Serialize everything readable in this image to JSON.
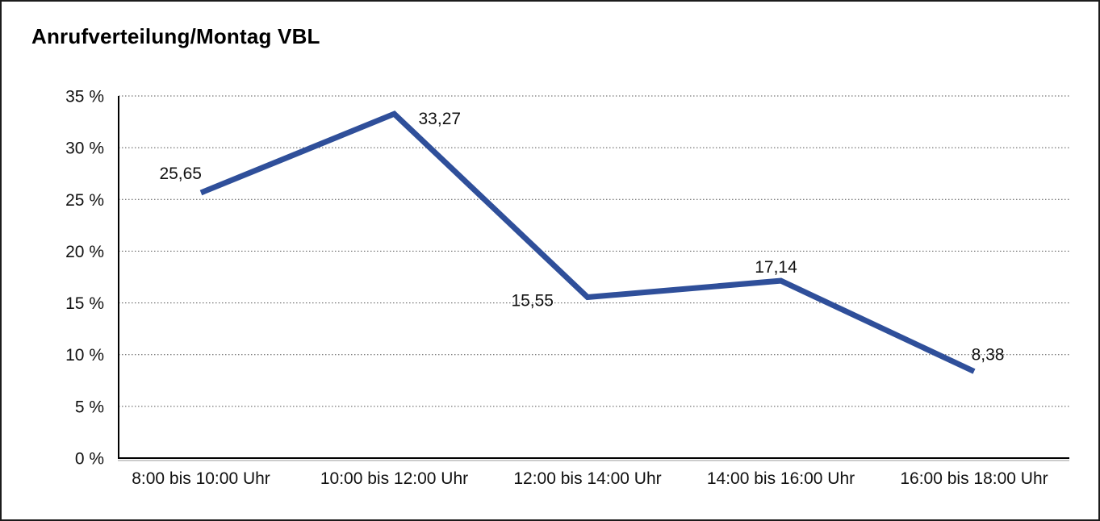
{
  "title": "Anrufverteilung/Montag VBL",
  "chart_data": {
    "type": "line",
    "title": "Anrufverteilung/Montag VBL",
    "categories": [
      "8:00 bis 10:00 Uhr",
      "10:00 bis 12:00 Uhr",
      "12:00 bis 14:00 Uhr",
      "14:00 bis 16:00 Uhr",
      "16:00 bis 18:00 Uhr"
    ],
    "values": [
      25.65,
      33.27,
      15.55,
      17.14,
      8.38
    ],
    "value_labels": [
      "25,65",
      "33,27",
      "15,55",
      "17,14",
      "8,38"
    ],
    "xlabel": "",
    "ylabel": "",
    "ylim": [
      0,
      35
    ],
    "y_tick_values": [
      35,
      30,
      25,
      20,
      15,
      10,
      5,
      0
    ],
    "y_tick_labels": [
      "35 %",
      "30 %",
      "25 %",
      "20 %",
      "15 %",
      "10 %",
      "5 %",
      "0 %"
    ],
    "grid": "horizontal-dotted",
    "legend": "none",
    "line_color": "#2F4F9A",
    "axis_color": "#000000",
    "grid_color": "#555555",
    "text_color": "#111111"
  }
}
